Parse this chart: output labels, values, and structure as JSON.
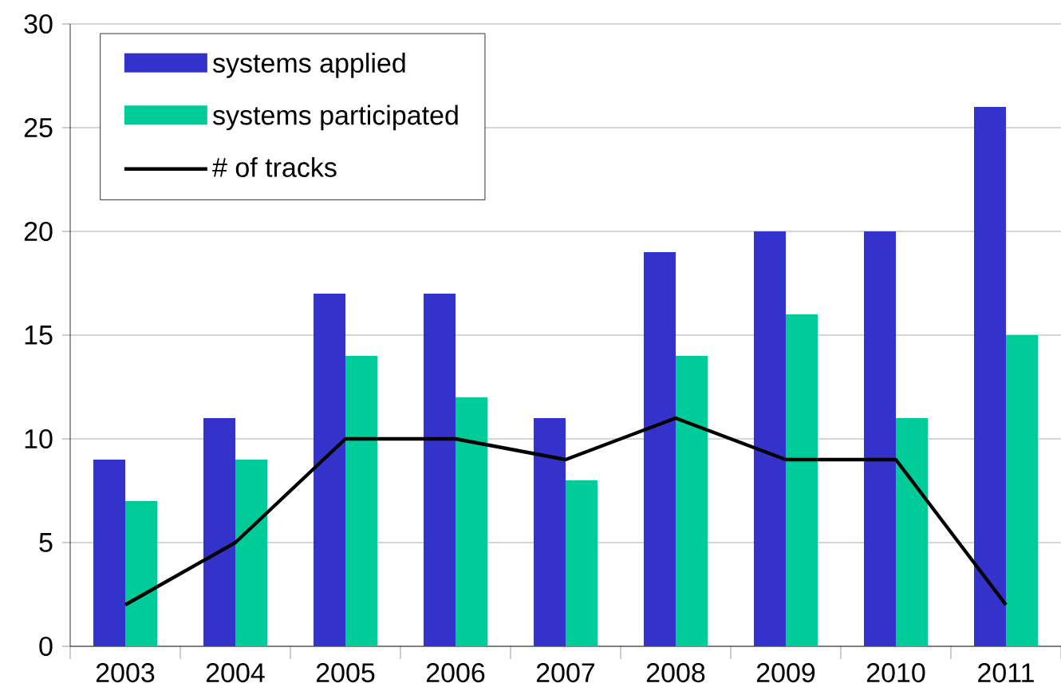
{
  "chart_data": {
    "type": "bar",
    "categories": [
      "2003",
      "2004",
      "2005",
      "2006",
      "2007",
      "2008",
      "2009",
      "2010",
      "2011"
    ],
    "series": [
      {
        "name": "systems applied",
        "color": "#3333cc",
        "values": [
          9,
          11,
          17,
          17,
          11,
          19,
          20,
          20,
          26
        ]
      },
      {
        "name": "systems participated",
        "color": "#00cc99",
        "values": [
          7,
          9,
          14,
          12,
          8,
          14,
          16,
          11,
          15
        ]
      },
      {
        "name": "# of tracks",
        "type": "line",
        "color": "#000000",
        "values": [
          2,
          5,
          10,
          10,
          9,
          11,
          9,
          9,
          2
        ]
      }
    ],
    "ylim": [
      0,
      30
    ],
    "yticks": [
      0,
      5,
      10,
      15,
      20,
      25,
      30
    ],
    "grid": "y",
    "legend": "top left",
    "marker": "none"
  }
}
